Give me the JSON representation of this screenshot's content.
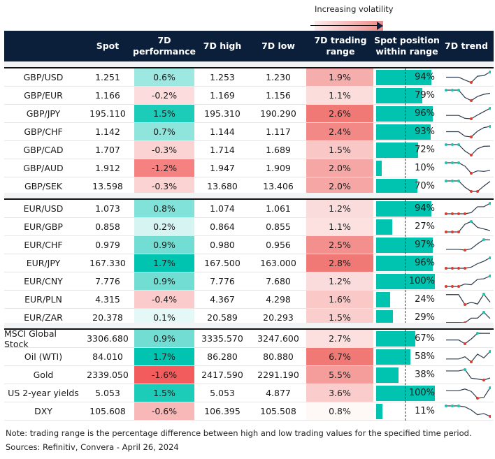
{
  "legend": {
    "label": "Increasing volatility"
  },
  "header": {
    "spot": "Spot",
    "perf": "7D performance",
    "high": "7D high",
    "low": "7D low",
    "range": "7D trading range",
    "position": "Spot position within range",
    "trend": "7D trend"
  },
  "colors": {
    "header_bg": "#0b1f3b",
    "positive": "#00c4b0",
    "negative": "#f25c5c",
    "range": "#ef6a66",
    "bar": "#00c4b0",
    "spark_max": "#1cc5b0",
    "spark_min": "#e03a2e"
  },
  "groups": [
    {
      "rows": [
        {
          "name": "GBP/USD",
          "spot": "1.251",
          "perf": "0.6%",
          "high": "1.253",
          "low": "1.230",
          "range": "1.9%",
          "position": "94%",
          "pos": 94,
          "trend": [
            0.5,
            0.5,
            0.5,
            0.23,
            0,
            0.6,
            0.65,
            1
          ]
        },
        {
          "name": "GBP/EUR",
          "spot": "1.166",
          "perf": "-0.2%",
          "high": "1.169",
          "low": "1.156",
          "range": "1.1%",
          "position": "79%",
          "pos": 79,
          "trend": [
            1,
            1,
            1,
            0.3,
            0,
            0.4,
            0.6,
            0.7
          ]
        },
        {
          "name": "GBP/JPY",
          "spot": "195.110",
          "perf": "1.5%",
          "high": "195.310",
          "low": "190.290",
          "range": "2.6%",
          "position": "96%",
          "pos": 96,
          "trend": [
            0.32,
            0.32,
            0.32,
            0.04,
            0,
            0.36,
            0.68,
            1
          ]
        },
        {
          "name": "GBP/CHF",
          "spot": "1.142",
          "perf": "0.7%",
          "high": "1.144",
          "low": "1.117",
          "range": "2.4%",
          "position": "93%",
          "pos": 93,
          "trend": [
            0.5,
            0.5,
            0.5,
            0.07,
            0,
            0.55,
            0.89,
            1
          ]
        },
        {
          "name": "GBP/CAD",
          "spot": "1.707",
          "perf": "-0.3%",
          "high": "1.714",
          "low": "1.689",
          "range": "1.5%",
          "position": "72%",
          "pos": 72,
          "trend": [
            1,
            1,
            1,
            0.39,
            0,
            0.61,
            0.84,
            0.86
          ]
        },
        {
          "name": "GBP/AUD",
          "spot": "1.912",
          "perf": "-1.2%",
          "high": "1.947",
          "low": "1.909",
          "range": "2.0%",
          "position": "10%",
          "pos": 10,
          "trend": [
            1,
            1,
            1,
            0.68,
            0,
            0.23,
            0.18,
            0.27
          ]
        },
        {
          "name": "GBP/SEK",
          "spot": "13.598",
          "perf": "-0.3%",
          "high": "13.680",
          "low": "13.406",
          "range": "2.0%",
          "position": "70%",
          "pos": 70,
          "trend": [
            1,
            1,
            1,
            0.4,
            0,
            0,
            0.51,
            0.96
          ]
        }
      ]
    },
    {
      "rows": [
        {
          "name": "EUR/USD",
          "spot": "1.073",
          "perf": "0.8%",
          "high": "1.074",
          "low": "1.061",
          "range": "1.2%",
          "position": "94%",
          "pos": 94,
          "trend": [
            0,
            0,
            0,
            0,
            0.11,
            0.67,
            0.67,
            1
          ]
        },
        {
          "name": "EUR/GBP",
          "spot": "0.858",
          "perf": "0.2%",
          "high": "0.864",
          "low": "0.855",
          "range": "1.1%",
          "position": "27%",
          "pos": 27,
          "trend": [
            0,
            0,
            0,
            0.73,
            1,
            0.44,
            0.29,
            0.13
          ]
        },
        {
          "name": "EUR/CHF",
          "spot": "0.979",
          "perf": "0.9%",
          "high": "0.980",
          "low": "0.956",
          "range": "2.5%",
          "position": "97%",
          "pos": 97,
          "trend": [
            0.07,
            0.07,
            0.07,
            0,
            0.13,
            0.6,
            1,
            0.98
          ]
        },
        {
          "name": "EUR/JPY",
          "spot": "167.330",
          "perf": "1.7%",
          "high": "167.500",
          "low": "163.000",
          "range": "2.8%",
          "position": "96%",
          "pos": 96,
          "trend": [
            0,
            0,
            0,
            0,
            0.11,
            0.44,
            0.67,
            1
          ]
        },
        {
          "name": "EUR/CNY",
          "spot": "7.776",
          "perf": "0.9%",
          "high": "7.776",
          "low": "7.680",
          "range": "1.2%",
          "position": "100%",
          "pos": 100,
          "trend": [
            0,
            0,
            0,
            0.23,
            0.16,
            0.68,
            0.73,
            1
          ]
        },
        {
          "name": "EUR/PLN",
          "spot": "4.315",
          "perf": "-0.4%",
          "high": "4.367",
          "low": "4.298",
          "range": "1.6%",
          "position": "24%",
          "pos": 24,
          "trend": [
            0.95,
            0.95,
            0.95,
            0,
            0.23,
            0.05,
            1,
            0.23
          ]
        },
        {
          "name": "EUR/ZAR",
          "spot": "20.378",
          "perf": "0.1%",
          "high": "20.589",
          "low": "20.293",
          "range": "1.5%",
          "position": "29%",
          "pos": 29,
          "trend": [
            0.02,
            0.02,
            0.02,
            0,
            0.44,
            0.44,
            1,
            0.4
          ]
        }
      ]
    },
    {
      "rows": [
        {
          "name": "MSCI Global Stock",
          "spot": "3306.680",
          "perf": "0.9%",
          "high": "3335.570",
          "low": "3247.600",
          "range": "2.7%",
          "position": "67%",
          "pos": 67,
          "trend": [
            0.36,
            0.36,
            0.36,
            0,
            0.45,
            1,
            0.99,
            0.99
          ]
        },
        {
          "name": "Oil (WTI)",
          "spot": "84.010",
          "perf": "1.7%",
          "high": "86.280",
          "low": "80.880",
          "range": "6.7%",
          "position": "58%",
          "pos": 58,
          "trend": [
            0.28,
            0.28,
            0.28,
            0.49,
            0,
            0.74,
            0.38,
            1
          ]
        },
        {
          "name": "Gold",
          "spot": "2339.050",
          "perf": "-1.6%",
          "high": "2417.590",
          "low": "2291.190",
          "range": "5.5%",
          "position": "38%",
          "pos": 38,
          "trend": [
            0.87,
            0.87,
            0.87,
            1,
            0.18,
            0.1,
            0,
            0.2
          ]
        },
        {
          "name": "US 2-year yields",
          "spot": "5.053",
          "perf": "1.5%",
          "high": "5.053",
          "low": "4.877",
          "range": "3.6%",
          "position": "100%",
          "pos": 100,
          "trend": [
            0.72,
            0.72,
            0.72,
            0.88,
            0.65,
            0,
            0.07,
            1
          ]
        },
        {
          "name": "DXY",
          "spot": "105.608",
          "perf": "-0.6%",
          "high": "106.395",
          "low": "105.508",
          "range": "0.8%",
          "position": "11%",
          "pos": 11,
          "trend": [
            1,
            1,
            1,
            0.91,
            0.61,
            0.16,
            0.27,
            0
          ]
        }
      ]
    }
  ],
  "footer": {
    "note": "Note: trading range is the percentage difference between high and low trading values for the specified time period.",
    "sources": "Sources: Refinitiv, Convera - April 26, 2024"
  }
}
